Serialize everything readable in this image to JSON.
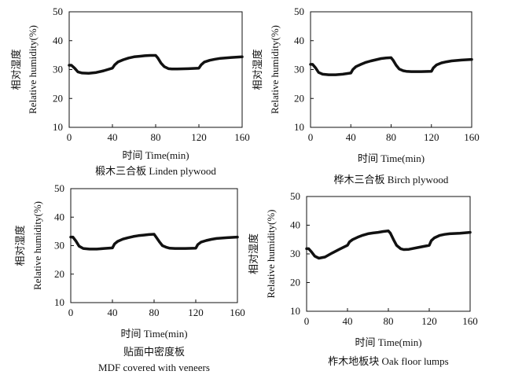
{
  "figure": {
    "background": "#ffffff",
    "line_color": "#111111"
  },
  "chart_data": [
    {
      "type": "line",
      "title": "",
      "xlabel": "时间 Time(min)",
      "ylabel_cn": "相对湿度",
      "ylabel": "Relative humidity(%)",
      "caption": [
        "椴木三合板 Linden plywood"
      ],
      "xlim": [
        0,
        160
      ],
      "ylim": [
        10,
        50
      ],
      "xticks": [
        0,
        40,
        80,
        120,
        160
      ],
      "yticks": [
        10,
        20,
        30,
        40,
        50
      ],
      "grid": false,
      "series": [
        {
          "x": [
            0,
            2,
            5,
            8,
            12,
            18,
            25,
            32,
            40,
            42,
            45,
            50,
            55,
            60,
            65,
            70,
            75,
            80,
            82,
            85,
            88,
            92,
            95,
            100,
            110,
            120,
            122,
            125,
            130,
            135,
            140,
            150,
            160
          ],
          "y": [
            31.5,
            31.5,
            30.5,
            29.2,
            28.8,
            28.7,
            29.0,
            29.6,
            30.5,
            31.6,
            32.6,
            33.4,
            34.0,
            34.4,
            34.6,
            34.8,
            34.9,
            34.9,
            34.0,
            32.2,
            31.0,
            30.3,
            30.2,
            30.2,
            30.3,
            30.5,
            31.6,
            32.6,
            33.2,
            33.6,
            33.9,
            34.2,
            34.4
          ]
        }
      ]
    },
    {
      "type": "line",
      "title": "",
      "xlabel": "时间 Time(min)",
      "ylabel_cn": "相对湿度",
      "ylabel": "Relative humidity(%)",
      "caption": [
        "桦木三合板 Birch plywood"
      ],
      "xlim": [
        0,
        160
      ],
      "ylim": [
        10,
        50
      ],
      "xticks": [
        0,
        40,
        80,
        120,
        160
      ],
      "yticks": [
        10,
        20,
        30,
        40,
        50
      ],
      "grid": false,
      "series": [
        {
          "x": [
            0,
            2,
            5,
            8,
            12,
            18,
            25,
            32,
            40,
            42,
            45,
            50,
            55,
            60,
            65,
            70,
            75,
            80,
            82,
            85,
            88,
            92,
            95,
            100,
            110,
            120,
            122,
            125,
            130,
            135,
            140,
            150,
            160
          ],
          "y": [
            31.8,
            31.8,
            30.6,
            29.0,
            28.4,
            28.2,
            28.2,
            28.4,
            28.8,
            30.0,
            31.0,
            31.8,
            32.5,
            33.0,
            33.4,
            33.8,
            34.0,
            34.1,
            33.2,
            31.5,
            30.2,
            29.6,
            29.4,
            29.3,
            29.3,
            29.4,
            30.6,
            31.6,
            32.3,
            32.7,
            33.0,
            33.3,
            33.5
          ]
        }
      ]
    },
    {
      "type": "line",
      "title": "",
      "xlabel": "时间 Time(min)",
      "ylabel_cn": "相对湿度",
      "ylabel": "Relative humidity(%)",
      "caption": [
        "贴面中密度板",
        "MDF covered with veneers"
      ],
      "xlim": [
        0,
        160
      ],
      "ylim": [
        10,
        50
      ],
      "xticks": [
        0,
        40,
        80,
        120,
        160
      ],
      "yticks": [
        10,
        20,
        30,
        40,
        50
      ],
      "grid": false,
      "series": [
        {
          "x": [
            0,
            2,
            5,
            8,
            12,
            18,
            25,
            32,
            40,
            42,
            45,
            50,
            55,
            60,
            65,
            70,
            75,
            80,
            82,
            85,
            88,
            92,
            95,
            100,
            110,
            120,
            122,
            125,
            130,
            135,
            140,
            150,
            160
          ],
          "y": [
            33.0,
            33.0,
            31.6,
            29.8,
            29.0,
            28.8,
            28.8,
            29.0,
            29.2,
            30.6,
            31.5,
            32.3,
            32.8,
            33.2,
            33.5,
            33.7,
            33.9,
            34.0,
            33.0,
            31.4,
            30.0,
            29.4,
            29.1,
            29.0,
            29.0,
            29.1,
            30.4,
            31.2,
            31.8,
            32.2,
            32.5,
            32.8,
            33.0
          ]
        }
      ]
    },
    {
      "type": "line",
      "title": "",
      "xlabel": "时间 Time(min)",
      "ylabel_cn": "相对湿度",
      "ylabel": "Relative humidity(%)",
      "caption": [
        "柞木地板块 Oak floor lumps"
      ],
      "xlim": [
        0,
        160
      ],
      "ylim": [
        10,
        50
      ],
      "xticks": [
        0,
        40,
        80,
        120,
        160
      ],
      "yticks": [
        10,
        20,
        30,
        40,
        50
      ],
      "grid": false,
      "series": [
        {
          "x": [
            0,
            2,
            5,
            8,
            12,
            18,
            25,
            32,
            40,
            42,
            45,
            50,
            55,
            60,
            65,
            70,
            75,
            80,
            82,
            85,
            88,
            92,
            95,
            100,
            110,
            120,
            122,
            125,
            130,
            135,
            140,
            150,
            160
          ],
          "y": [
            31.8,
            31.8,
            30.6,
            29.2,
            28.5,
            28.9,
            30.3,
            31.6,
            33.0,
            34.2,
            35.0,
            35.8,
            36.5,
            37.0,
            37.3,
            37.5,
            37.8,
            38.0,
            37.2,
            35.0,
            33.0,
            31.8,
            31.5,
            31.6,
            32.3,
            33.0,
            34.6,
            35.6,
            36.4,
            36.8,
            37.0,
            37.2,
            37.5
          ]
        }
      ]
    }
  ]
}
